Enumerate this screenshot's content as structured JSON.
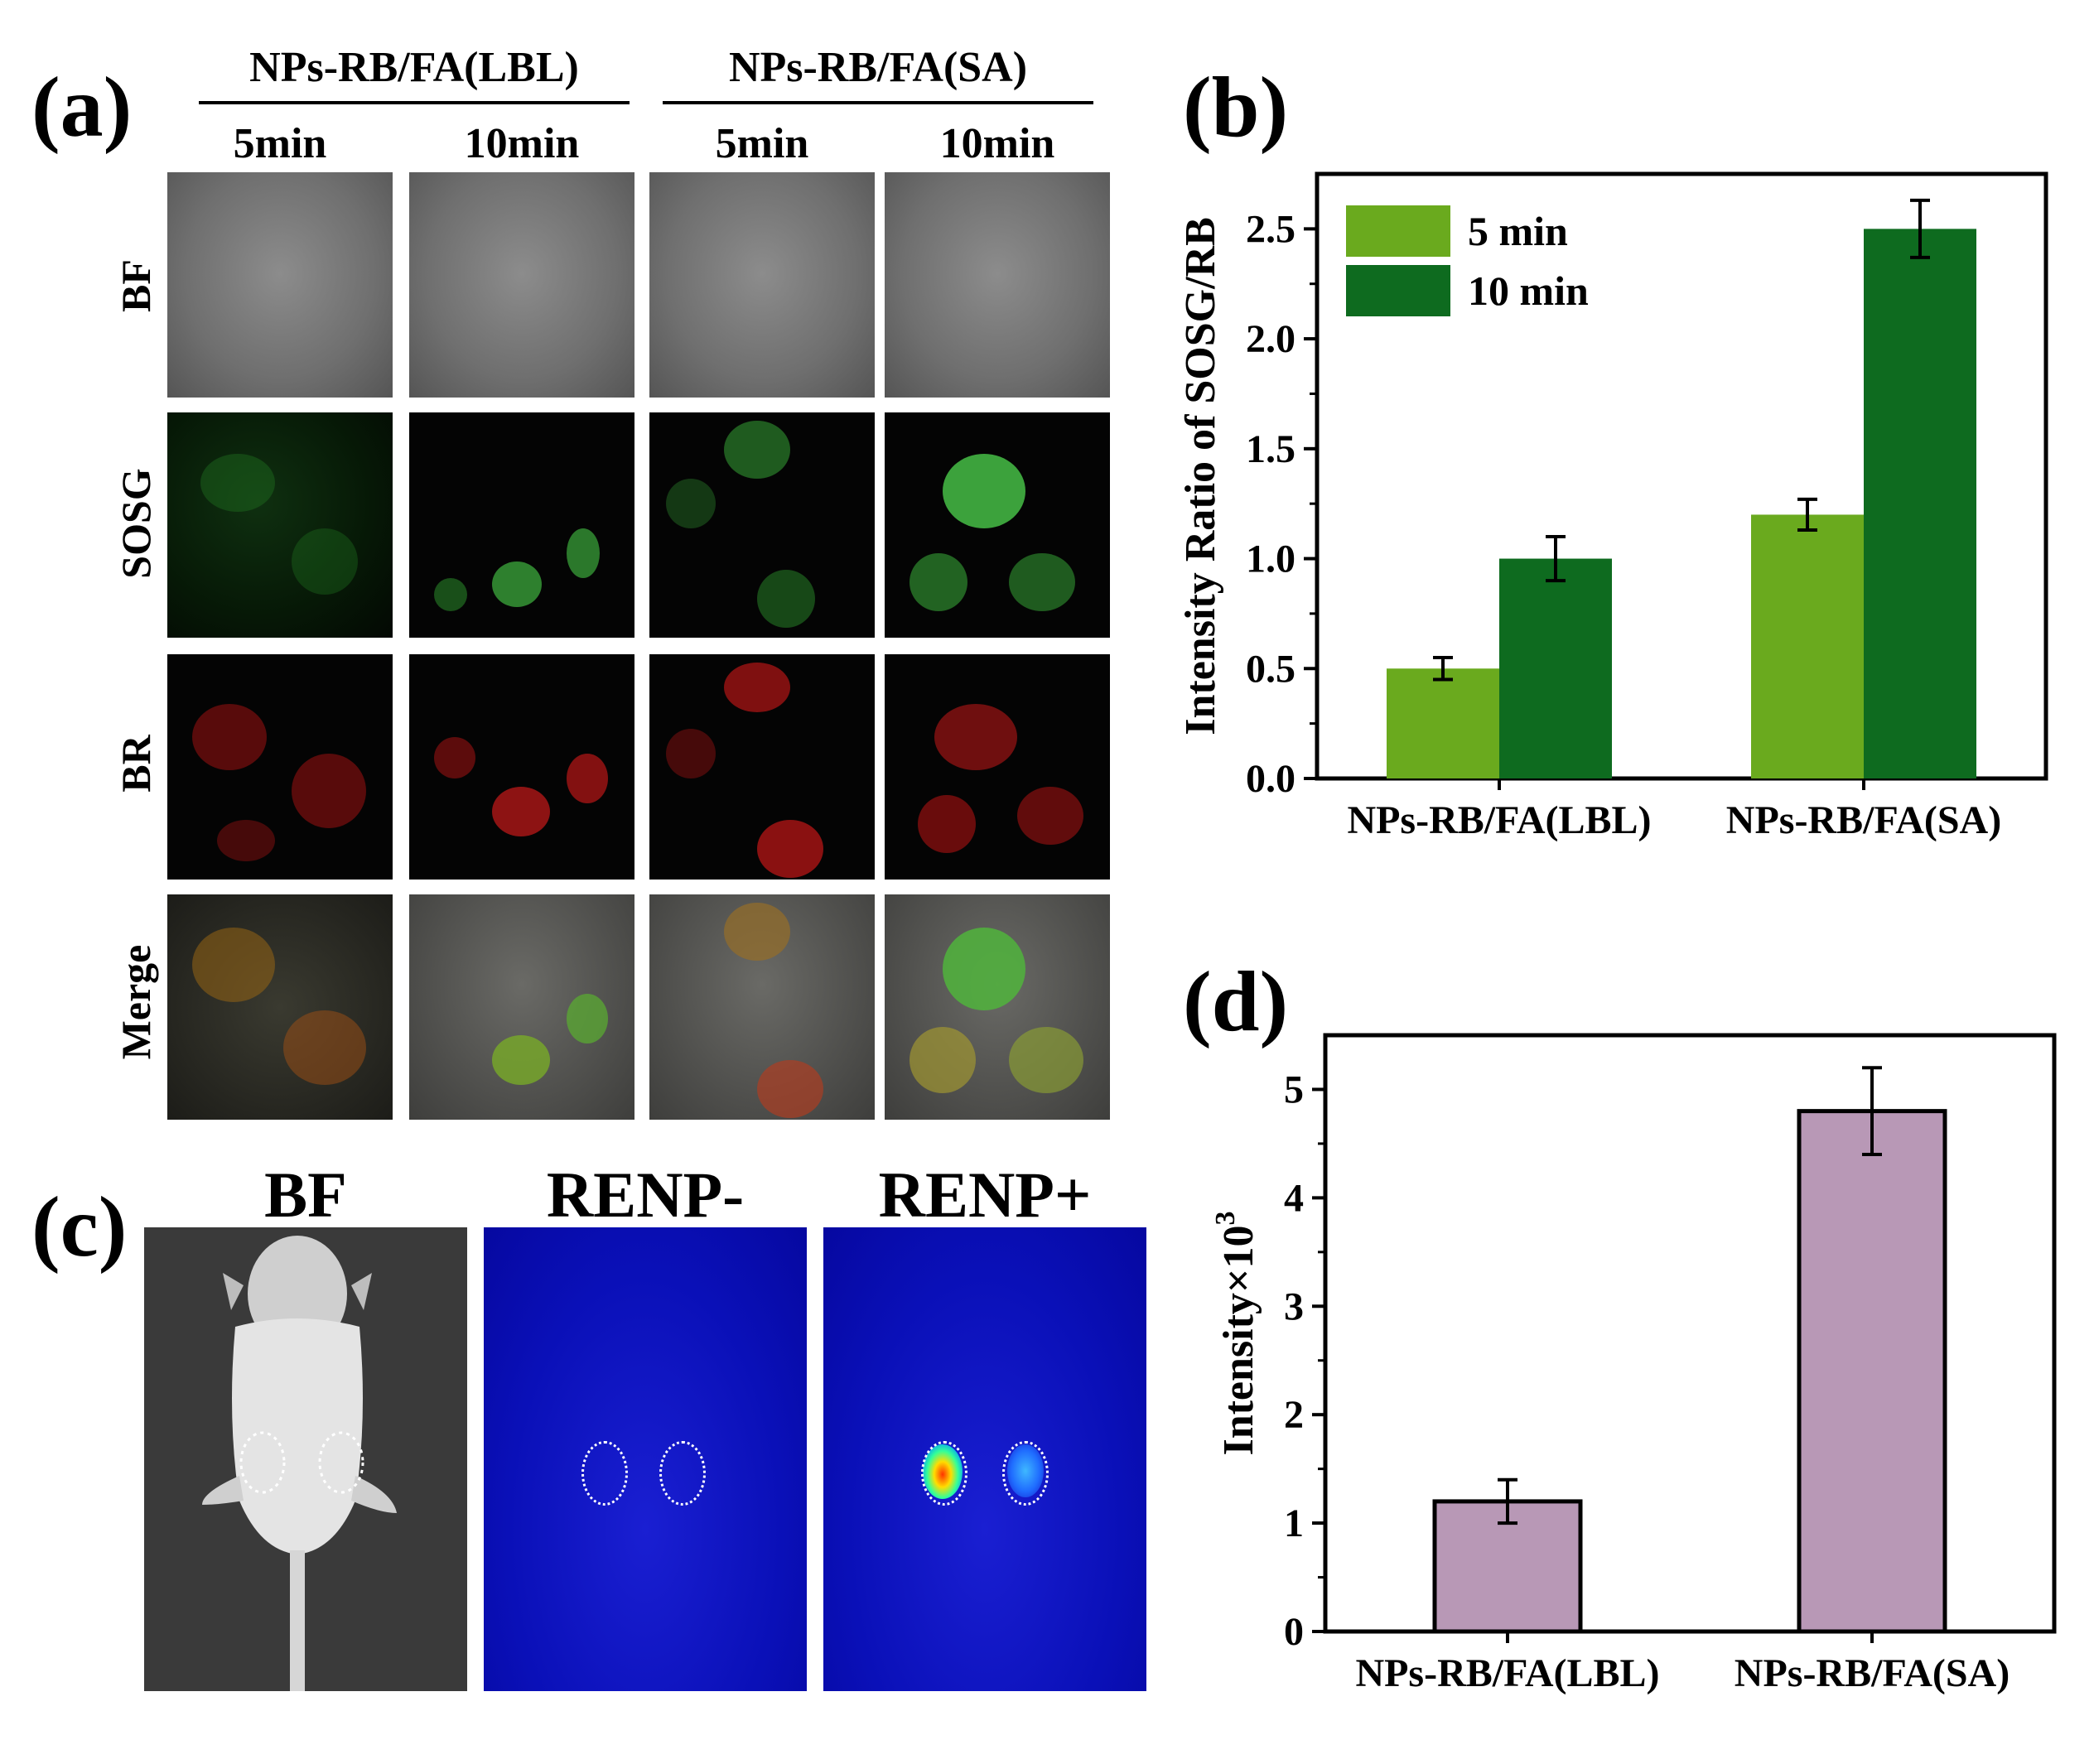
{
  "panel_labels": {
    "a": "(a)",
    "b": "(b)",
    "c": "(c)",
    "d": "(d)"
  },
  "panel_a": {
    "groups": [
      "NPs-RB/FA(LBL)",
      "NPs-RB/FA(SA)"
    ],
    "times": [
      "5min",
      "10min",
      "5min",
      "10min"
    ],
    "rows": [
      "BF",
      "SOSG",
      "BR",
      "Merge"
    ]
  },
  "panel_c": {
    "titles": [
      "BF",
      "RENP-",
      "RENP+"
    ]
  },
  "colors": {
    "light_green": "#6aaa1e",
    "dark_green": "#0e6b1f",
    "mauve": "#b898b6"
  },
  "chart_data": [
    {
      "id": "b",
      "type": "bar",
      "categories": [
        "NPs-RB/FA(LBL)",
        "NPs-RB/FA(SA)"
      ],
      "series": [
        {
          "name": "5 min",
          "values": [
            0.5,
            1.2
          ],
          "errors": [
            0.05,
            0.07
          ],
          "color": "#6aaa1e"
        },
        {
          "name": "10 min",
          "values": [
            1.0,
            2.5
          ],
          "errors": [
            0.1,
            0.13
          ],
          "color": "#0e6b1f"
        }
      ],
      "ylabel": "Intensity Ratio of SOSG/RB",
      "ylim": [
        0,
        2.75
      ],
      "yticks": [
        "0.0",
        "0.5",
        "1.0",
        "1.5",
        "2.0",
        "2.5"
      ],
      "legend": "top-left"
    },
    {
      "id": "d",
      "type": "bar",
      "categories": [
        "NPs-RB/FA(LBL)",
        "NPs-RB/FA(SA)"
      ],
      "series": [
        {
          "name": "Intensity",
          "values": [
            1.2,
            4.8
          ],
          "errors": [
            0.2,
            0.4
          ],
          "color": "#b898b6"
        }
      ],
      "ylabel_main": "Intensity×10",
      "ylabel_sup": "3",
      "ylim": [
        0,
        5.5
      ],
      "yticks": [
        "0",
        "1",
        "2",
        "3",
        "4",
        "5"
      ]
    }
  ]
}
